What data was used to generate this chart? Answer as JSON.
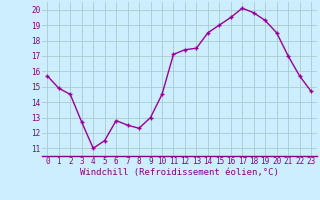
{
  "x": [
    0,
    1,
    2,
    3,
    4,
    5,
    6,
    7,
    8,
    9,
    10,
    11,
    12,
    13,
    14,
    15,
    16,
    17,
    18,
    19,
    20,
    21,
    22,
    23
  ],
  "y": [
    15.7,
    14.9,
    14.5,
    12.7,
    11.0,
    11.5,
    12.8,
    12.5,
    12.3,
    13.0,
    14.5,
    17.1,
    17.4,
    17.5,
    18.5,
    19.0,
    19.5,
    20.1,
    19.8,
    19.3,
    18.5,
    17.0,
    15.7,
    14.7
  ],
  "line_color": "#990099",
  "marker": "+",
  "marker_color": "#990099",
  "bg_color": "#cceeff",
  "grid_color": "#aacccc",
  "xlabel": "Windchill (Refroidissement éolien,°C)",
  "xlim": [
    -0.5,
    23.5
  ],
  "ylim": [
    10.5,
    20.5
  ],
  "yticks": [
    11,
    12,
    13,
    14,
    15,
    16,
    17,
    18,
    19,
    20
  ],
  "xticks": [
    0,
    1,
    2,
    3,
    4,
    5,
    6,
    7,
    8,
    9,
    10,
    11,
    12,
    13,
    14,
    15,
    16,
    17,
    18,
    19,
    20,
    21,
    22,
    23
  ],
  "tick_label_color": "#880088",
  "tick_label_fontsize": 5.5,
  "xlabel_fontsize": 6.5,
  "xlabel_color": "#880088",
  "line_width": 1.0,
  "marker_size": 3.5
}
